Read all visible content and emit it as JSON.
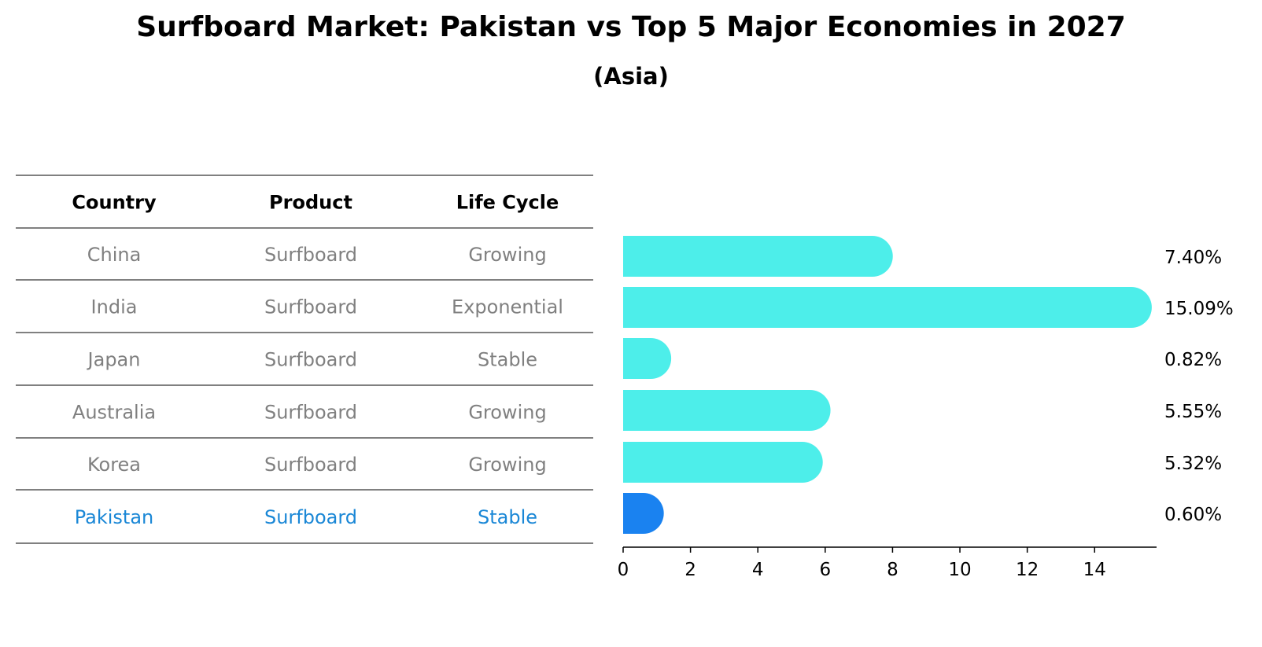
{
  "title": "Surfboard Market: Pakistan vs Top 5 Major Economies in 2027",
  "subtitle": "(Asia)",
  "table": {
    "headers": [
      "Country",
      "Product",
      "Life Cycle"
    ],
    "rows": [
      {
        "country": "China",
        "product": "Surfboard",
        "life_cycle": "Growing"
      },
      {
        "country": "India",
        "product": "Surfboard",
        "life_cycle": "Exponential"
      },
      {
        "country": "Japan",
        "product": "Surfboard",
        "life_cycle": "Stable"
      },
      {
        "country": "Australia",
        "product": "Surfboard",
        "life_cycle": "Growing"
      },
      {
        "country": "Korea",
        "product": "Surfboard",
        "life_cycle": "Growing"
      },
      {
        "country": "Pakistan",
        "product": "Surfboard",
        "life_cycle": "Stable",
        "highlight": true
      }
    ]
  },
  "chart_data": {
    "type": "bar",
    "orientation": "horizontal",
    "categories": [
      "China",
      "India",
      "Japan",
      "Australia",
      "Korea",
      "Pakistan"
    ],
    "values": [
      7.4,
      15.09,
      0.82,
      5.55,
      5.32,
      0.6
    ],
    "value_labels": [
      "7.40%",
      "15.09%",
      "0.82%",
      "5.55%",
      "5.32%",
      "0.60%"
    ],
    "xlim": [
      0,
      15.84
    ],
    "xticks": [
      0,
      2,
      4,
      6,
      8,
      10,
      12,
      14
    ],
    "xlabel": "",
    "ylabel": "",
    "grid": false,
    "colors": {
      "default": "#4deeea",
      "highlight": "#1a82f0"
    },
    "highlight_category": "Pakistan"
  },
  "colors": {
    "muted_text": "#808080",
    "highlight_text": "#1a87d6"
  }
}
